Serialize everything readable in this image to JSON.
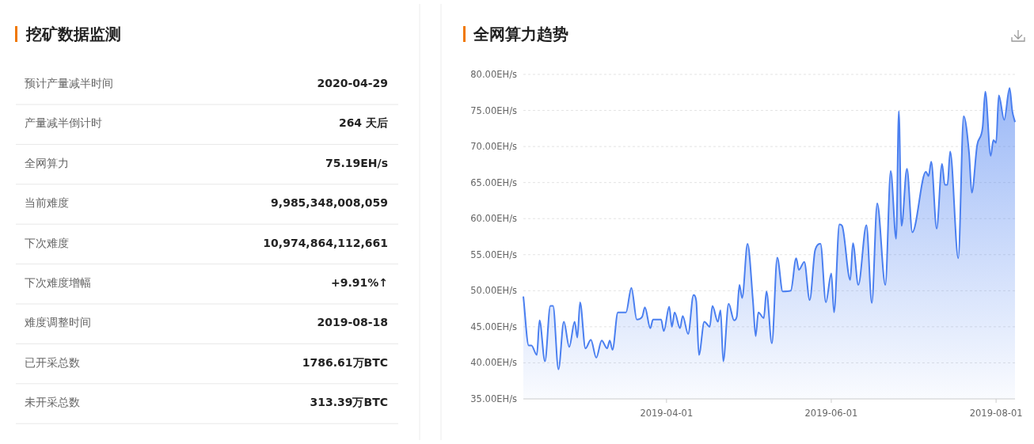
{
  "chart_data": [
    {
      "type": "other",
      "title": "挖矿数据监测",
      "annotations": [
        "预计产量减半时间",
        "2020-04-29",
        "产量减半倒计时",
        "264 天后",
        "全网算力",
        "75.19EH/s",
        "当前难度",
        "9,985,348,008,059",
        "下次难度",
        "10,974,864,112,661",
        "下次难度增幅",
        "+9.91%↑",
        "难度调整时间",
        "2019-08-18",
        "已开采总数",
        "1786.61万BTC",
        "未开采总数",
        "313.39万BTC"
      ]
    },
    {
      "type": "area",
      "title": "全网算力趋势",
      "grid": "y",
      "marker": "none",
      "x": [
        "2019-02-07",
        "2019-02-09",
        "2019-02-10",
        "2019-02-12",
        "2019-02-13",
        "2019-02-15",
        "2019-02-17",
        "2019-02-18",
        "2019-02-20",
        "2019-02-22",
        "2019-02-24",
        "2019-02-26",
        "2019-02-27",
        "2019-02-28",
        "2019-03-02",
        "2019-03-04",
        "2019-03-06",
        "2019-03-08",
        "2019-03-10",
        "2019-03-11",
        "2019-03-12",
        "2019-03-14",
        "2019-03-17",
        "2019-03-19",
        "2019-03-21",
        "2019-03-23",
        "2019-03-24",
        "2019-03-26",
        "2019-03-27",
        "2019-03-30",
        "2019-03-31",
        "2019-04-02",
        "2019-04-03",
        "2019-04-04",
        "2019-04-06",
        "2019-04-07",
        "2019-04-09",
        "2019-04-11",
        "2019-04-12",
        "2019-04-13",
        "2019-04-15",
        "2019-04-17",
        "2019-04-18",
        "2019-04-20",
        "2019-04-21",
        "2019-04-22",
        "2019-04-24",
        "2019-04-26",
        "2019-04-27",
        "2019-04-28",
        "2019-04-29",
        "2019-05-01",
        "2019-05-03",
        "2019-05-04",
        "2019-05-05",
        "2019-05-07",
        "2019-05-08",
        "2019-05-10",
        "2019-05-12",
        "2019-05-14",
        "2019-05-17",
        "2019-05-19",
        "2019-05-20",
        "2019-05-22",
        "2019-05-24",
        "2019-05-26",
        "2019-05-28",
        "2019-05-30",
        "2019-06-01",
        "2019-06-02",
        "2019-06-04",
        "2019-06-05",
        "2019-06-08",
        "2019-06-09",
        "2019-06-11",
        "2019-06-14",
        "2019-06-16",
        "2019-06-18",
        "2019-06-21",
        "2019-06-23",
        "2019-06-25",
        "2019-06-26",
        "2019-06-27",
        "2019-06-29",
        "2019-07-01",
        "2019-07-06",
        "2019-07-07",
        "2019-07-08",
        "2019-07-10",
        "2019-07-12",
        "2019-07-13",
        "2019-07-14",
        "2019-07-15",
        "2019-07-18",
        "2019-07-20",
        "2019-07-22",
        "2019-07-23",
        "2019-07-25",
        "2019-07-27",
        "2019-07-28",
        "2019-07-30",
        "2019-07-31",
        "2019-08-01",
        "2019-08-02",
        "2019-08-04",
        "2019-08-06",
        "2019-08-07",
        "2019-08-08"
      ],
      "series": [
        {
          "color": "#4a7ff0",
          "values": [
            49.2,
            42.4,
            42.4,
            41.1,
            45.9,
            40.2,
            47.9,
            47.9,
            39.1,
            45.7,
            42.2,
            45.7,
            43.5,
            48.4,
            42.0,
            43.2,
            40.7,
            43.1,
            42.0,
            43.1,
            41.8,
            47.0,
            47.0,
            50.4,
            46.0,
            46.4,
            47.7,
            44.8,
            46.0,
            46.0,
            44.4,
            47.8,
            45.0,
            47.0,
            44.8,
            46.5,
            44.0,
            49.4,
            48.6,
            41.1,
            45.7,
            45.0,
            47.9,
            45.7,
            47.3,
            40.2,
            48.2,
            45.9,
            46.4,
            50.8,
            49.0,
            56.5,
            48.6,
            43.7,
            47.0,
            46.2,
            49.9,
            42.7,
            54.6,
            49.9,
            50.0,
            54.5,
            52.9,
            54.0,
            48.7,
            55.6,
            56.5,
            48.4,
            52.4,
            47.0,
            59.2,
            59.0,
            51.5,
            56.6,
            50.8,
            59.1,
            48.3,
            62.1,
            50.8,
            66.6,
            57.2,
            74.9,
            59.0,
            66.9,
            58.1,
            66.5,
            65.9,
            67.9,
            58.6,
            67.6,
            64.7,
            64.7,
            69.3,
            54.5,
            74.2,
            69.1,
            63.6,
            70.2,
            72.6,
            77.6,
            68.7,
            70.9,
            70.5,
            77.1,
            73.7,
            78.1,
            74.9,
            73.4
          ]
        }
      ],
      "xlim": [
        "2019-02-07",
        "2019-08-08"
      ],
      "xticks": [
        "2019-04-01",
        "2019-06-01",
        "2019-08-01"
      ],
      "ylim": [
        35,
        80
      ],
      "yticks": [
        {
          "value": 35,
          "label": "35.00EH/s"
        },
        {
          "value": 40,
          "label": "40.00EH/s"
        },
        {
          "value": 45,
          "label": "45.00EH/s"
        },
        {
          "value": 50,
          "label": "50.00EH/s"
        },
        {
          "value": 55,
          "label": "55.00EH/s"
        },
        {
          "value": 60,
          "label": "60.00EH/s"
        },
        {
          "value": 65,
          "label": "65.00EH/s"
        },
        {
          "value": 70,
          "label": "70.00EH/s"
        },
        {
          "value": 75,
          "label": "75.00EH/s"
        },
        {
          "value": 80,
          "label": "80.00EH/s"
        }
      ]
    }
  ]
}
